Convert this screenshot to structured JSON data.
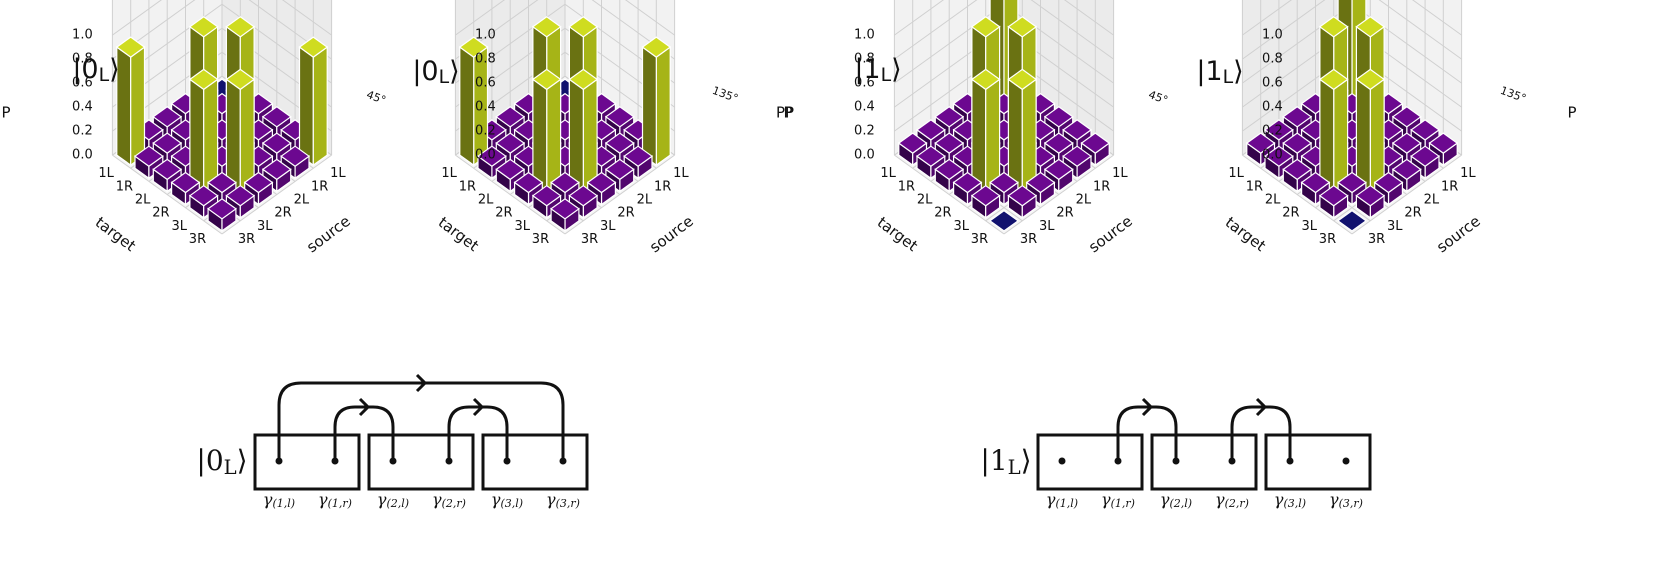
{
  "chart_data": [
    {
      "type": "bar3d",
      "title": "|0L⟩",
      "view_azimuth_label": "45°",
      "zlabel": "P",
      "axes_labels": [
        "target",
        "source"
      ],
      "x_label": "target",
      "y_label": "source",
      "categories": [
        "1L",
        "1R",
        "2L",
        "2R",
        "3L",
        "3R"
      ],
      "zticks": [
        "0.0",
        "0.2",
        "0.4",
        "0.6",
        "0.8",
        "1.0"
      ],
      "zlim": [
        0,
        1
      ],
      "matrix": [
        [
          0.0,
          0.1,
          0.1,
          0.1,
          0.1,
          0.9
        ],
        [
          0.1,
          0.1,
          0.85,
          0.1,
          0.1,
          0.1
        ],
        [
          0.1,
          0.85,
          0.1,
          0.1,
          0.1,
          0.1
        ],
        [
          0.1,
          0.1,
          0.1,
          0.1,
          0.85,
          0.1
        ],
        [
          0.1,
          0.1,
          0.1,
          0.85,
          0.1,
          0.1
        ],
        [
          0.9,
          0.1,
          0.1,
          0.1,
          0.1,
          0.1
        ]
      ]
    },
    {
      "type": "bar3d",
      "title": "|0L⟩",
      "view_azimuth_label": "135°",
      "zlabel": "PP",
      "x_label": "source",
      "y_label": "target",
      "categories": [
        "1L",
        "1R",
        "2L",
        "2R",
        "3L",
        "3R"
      ],
      "zticks": [
        "0.0",
        "0.2",
        "0.4",
        "0.6",
        "0.8",
        "1.0"
      ],
      "zlim": [
        0,
        1
      ],
      "matrix": [
        [
          0.0,
          0.1,
          0.1,
          0.1,
          0.1,
          0.9
        ],
        [
          0.1,
          0.1,
          0.85,
          0.1,
          0.1,
          0.1
        ],
        [
          0.1,
          0.85,
          0.1,
          0.1,
          0.1,
          0.1
        ],
        [
          0.1,
          0.1,
          0.1,
          0.1,
          0.85,
          0.1
        ],
        [
          0.1,
          0.1,
          0.1,
          0.85,
          0.1,
          0.1
        ],
        [
          0.9,
          0.1,
          0.1,
          0.1,
          0.1,
          0.1
        ]
      ]
    },
    {
      "type": "bar3d",
      "title": "|1L⟩",
      "view_azimuth_label": "45°",
      "zlabel": "P",
      "x_label": "target",
      "y_label": "source",
      "categories": [
        "1L",
        "1R",
        "2L",
        "2R",
        "3L",
        "3R"
      ],
      "zticks": [
        "0.0",
        "0.2",
        "0.4",
        "0.6",
        "0.8",
        "1.0"
      ],
      "zlim": [
        0,
        1
      ],
      "matrix": [
        [
          0.9,
          0.1,
          0.1,
          0.1,
          0.1,
          0.1
        ],
        [
          0.1,
          0.1,
          0.85,
          0.1,
          0.1,
          0.1
        ],
        [
          0.1,
          0.85,
          0.1,
          0.1,
          0.1,
          0.1
        ],
        [
          0.1,
          0.1,
          0.1,
          0.1,
          0.85,
          0.1
        ],
        [
          0.1,
          0.1,
          0.1,
          0.85,
          0.1,
          0.1
        ],
        [
          0.1,
          0.1,
          0.1,
          0.1,
          0.1,
          0.0
        ]
      ]
    },
    {
      "type": "bar3d",
      "title": "|1L⟩",
      "view_azimuth_label": "135°",
      "zlabel": "P",
      "x_label": "source",
      "y_label": "target",
      "categories": [
        "1L",
        "1R",
        "2L",
        "2R",
        "3L",
        "3R"
      ],
      "zticks": [
        "0.0",
        "0.2",
        "0.4",
        "0.6",
        "0.8",
        "1.0"
      ],
      "zlim": [
        0,
        1
      ],
      "matrix": [
        [
          0.9,
          0.1,
          0.1,
          0.1,
          0.1,
          0.1
        ],
        [
          0.1,
          0.1,
          0.85,
          0.1,
          0.1,
          0.1
        ],
        [
          0.1,
          0.85,
          0.1,
          0.1,
          0.1,
          0.1
        ],
        [
          0.1,
          0.1,
          0.1,
          0.1,
          0.85,
          0.1
        ],
        [
          0.1,
          0.1,
          0.1,
          0.85,
          0.1,
          0.1
        ],
        [
          0.1,
          0.1,
          0.1,
          0.1,
          0.1,
          0.0
        ]
      ]
    }
  ],
  "diagrams": [
    {
      "ket": "|0L⟩",
      "modes": [
        "γ(1,l)",
        "γ(1,r)",
        "γ(2,l)",
        "γ(2,r)",
        "γ(3,l)",
        "γ(3,r)"
      ],
      "gamma_symbol": "γ",
      "mode_subscripts": [
        "(1,l)",
        "(1,r)",
        "(2,l)",
        "(2,r)",
        "(3,l)",
        "(3,r)"
      ],
      "arrows": [
        [
          0,
          5
        ],
        [
          1,
          2
        ],
        [
          3,
          4
        ]
      ]
    },
    {
      "ket": "|1L⟩",
      "modes": [
        "γ(1,l)",
        "γ(1,r)",
        "γ(2,l)",
        "γ(2,r)",
        "γ(3,l)",
        "γ(3,r)"
      ],
      "gamma_symbol": "γ",
      "mode_subscripts": [
        "(1,l)",
        "(1,r)",
        "(2,l)",
        "(2,r)",
        "(3,l)",
        "(3,r)"
      ],
      "arrows": [
        [
          1,
          2
        ],
        [
          3,
          4
        ]
      ]
    }
  ],
  "colors": {
    "high_top": "#cfdc20",
    "high_front": "#a6b417",
    "high_side": "#6a7212",
    "low_top": "#6c0890",
    "low_front": "#52066e",
    "low_side": "#34034a",
    "zero": "#11116e",
    "pane": "#f2f2f2",
    "grid": "#d0d0d0"
  }
}
